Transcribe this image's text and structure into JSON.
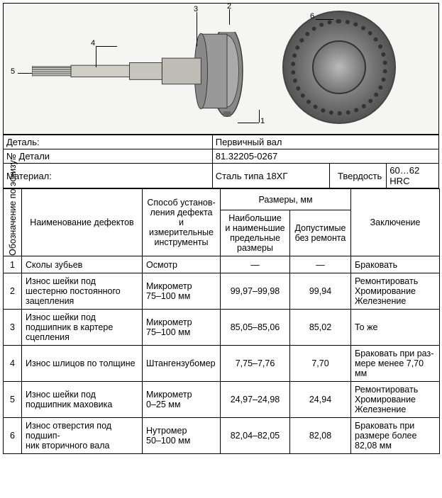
{
  "meta": {
    "part_label": "Деталь:",
    "part_value": "Первичный вал",
    "partno_label": "№ Детали",
    "partno_value": "81.32205-0267",
    "material_label": "Материал:",
    "material_value": "Сталь типа 18ХГ",
    "hardness_label": "Твердость",
    "hardness_value": "60…62 HRC"
  },
  "headers": {
    "sketch_col": "Обозначение по эскизу",
    "name": "Наименование дефектов",
    "method": "Способ установ-\nления дефекта\nи измерительные\nинструменты",
    "sizes": "Размеры, мм",
    "size1": "Наибольшие\nи наименьшие\nпредельные\nразмеры",
    "size2": "Допустимые\nбез ремонта",
    "conclusion": "Заключение"
  },
  "rows": [
    {
      "n": "1",
      "name": "Сколы зубьев",
      "method": "Осмотр",
      "s1": "—",
      "s2": "—",
      "concl": "Браковать"
    },
    {
      "n": "2",
      "name": "Износ шейки под шестерню постоянного зацепления",
      "method": "Микрометр\n75–100 мм",
      "s1": "99,97–99,98",
      "s2": "99,94",
      "concl": "Ремонтировать\nХромирование\nЖелезнение"
    },
    {
      "n": "3",
      "name": "Износ шейки под подшипник в картере сцепления",
      "method": "Микрометр\n75–100 мм",
      "s1": "85,05–85,06",
      "s2": "85,02",
      "concl": "То же"
    },
    {
      "n": "4",
      "name": "Износ шлицов по толщине",
      "method": "Штангензубомер",
      "s1": "7,75–7,76",
      "s2": "7,70",
      "concl": "Браковать при раз-\nмере менее 7,70 мм"
    },
    {
      "n": "5",
      "name": "Износ шейки под подшипник маховика",
      "method": "Микрометр\n0–25 мм",
      "s1": "24,97–24,98",
      "s2": "24,94",
      "concl": "Ремонтировать\nХромирование\nЖелезнение"
    },
    {
      "n": "6",
      "name": "Износ отверстия под подшип-\nник вторичного вала",
      "method": "Нутромер\n50–100 мм",
      "s1": "82,04–82,05",
      "s2": "82,08",
      "concl": "Браковать при\nразмере более\n82,08 мм"
    }
  ],
  "callouts": {
    "c1": "1",
    "c2": "2",
    "c3": "3",
    "c4": "4",
    "c5": "5",
    "c6": "6"
  }
}
